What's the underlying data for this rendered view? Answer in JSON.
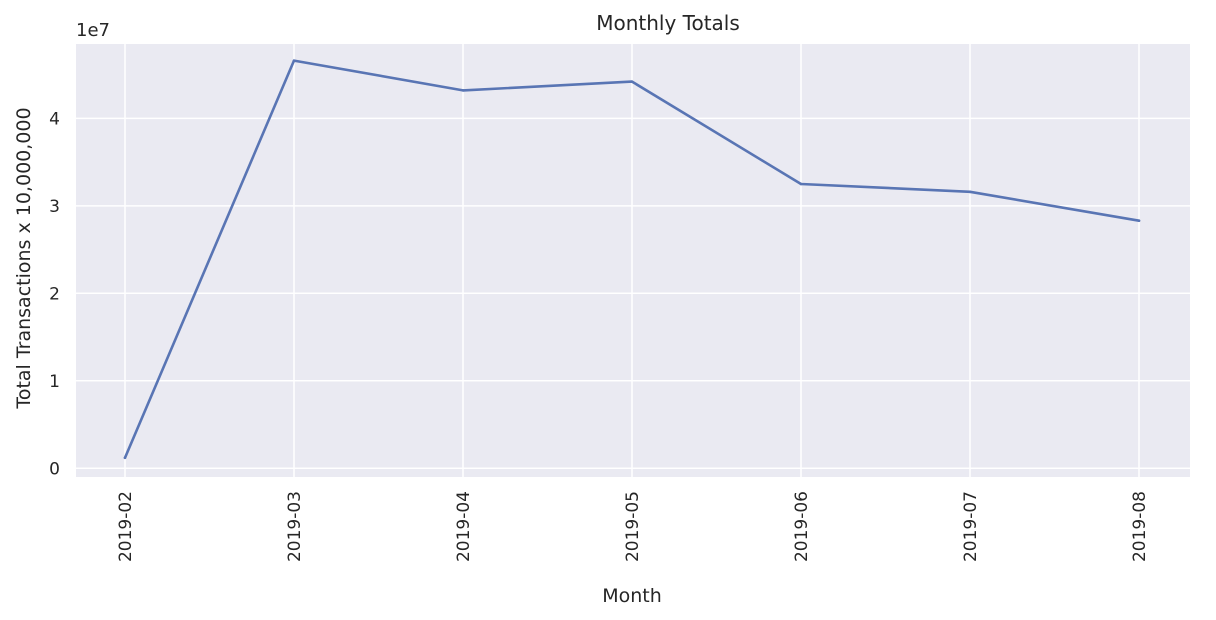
{
  "chart_data": {
    "type": "line",
    "title": "Monthly Totals",
    "xlabel": "Month",
    "ylabel": "Total Transactions x 10,000,000",
    "y_offset_label": "1e7",
    "categories": [
      "2019-02",
      "2019-03",
      "2019-04",
      "2019-05",
      "2019-06",
      "2019-07",
      "2019-08"
    ],
    "series": [
      {
        "name": "Monthly Totals",
        "values": [
          1200000,
          46600000,
          43200000,
          44200000,
          32500000,
          31600000,
          28300000
        ]
      }
    ],
    "ylim": [
      -1000000,
      48500000
    ],
    "y_ticks": [
      0,
      10000000,
      20000000,
      30000000,
      40000000
    ],
    "y_tick_labels": [
      "0",
      "1",
      "2",
      "3",
      "4"
    ],
    "grid": true,
    "colors": {
      "background": "#eaeaf2",
      "grid": "#ffffff",
      "line": "#5975b4"
    }
  }
}
